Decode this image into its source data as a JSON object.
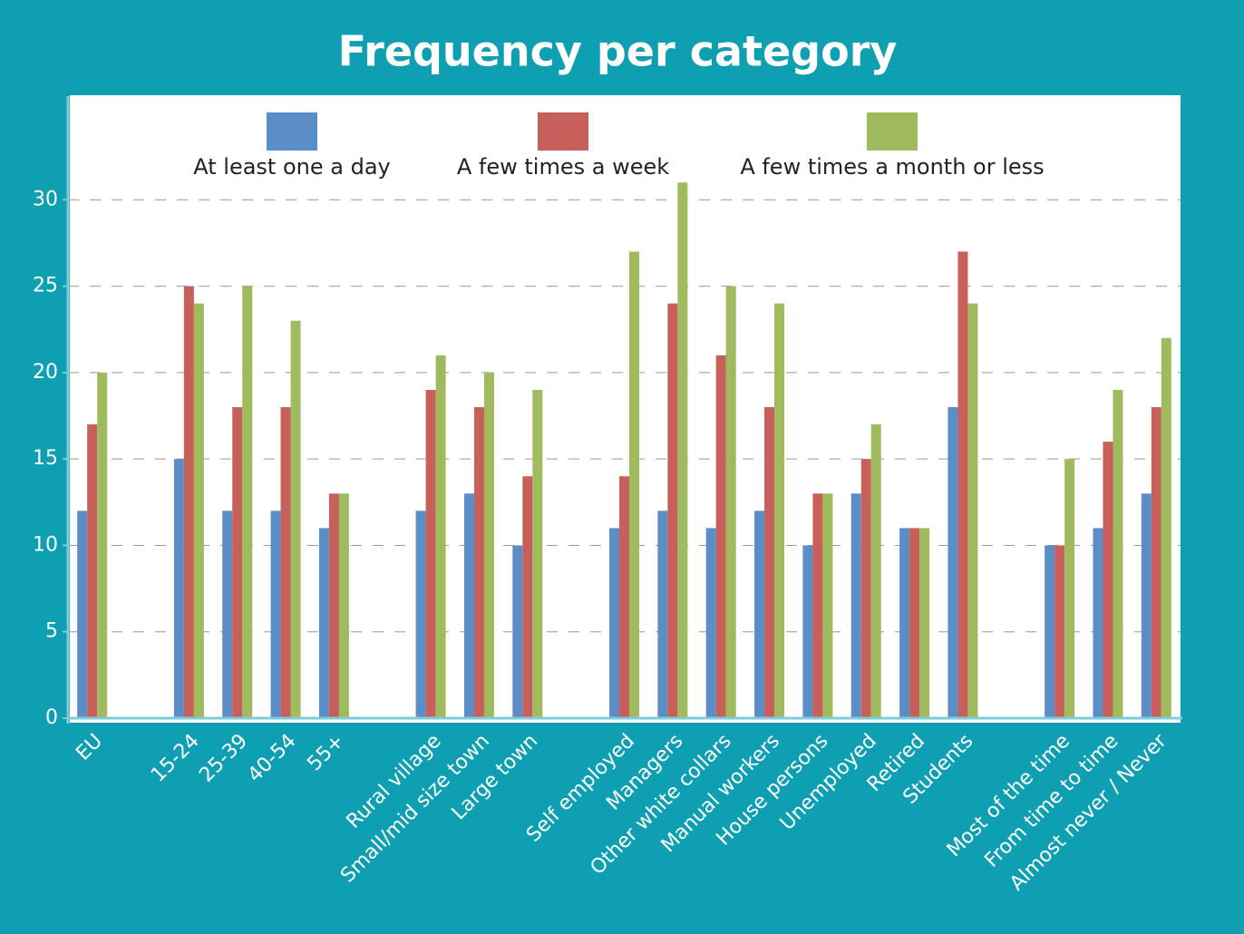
{
  "chart_data": {
    "type": "bar",
    "title": "Frequency per category",
    "categories": [
      "EU",
      null,
      "15-24",
      "25-39",
      "40-54",
      "55+",
      null,
      "Rural village",
      "Small/mid size town",
      "Large town",
      null,
      "Self employed",
      "Managers",
      "Other white collars",
      "Manual workers",
      "House persons",
      "Unemployed",
      "Retired",
      "Students",
      null,
      "Most of the time",
      "From time to time",
      "Almost never / Never"
    ],
    "series": [
      {
        "name": "At least one a day",
        "color": "#5b8ec6",
        "values": [
          12,
          null,
          15,
          12,
          12,
          11,
          null,
          12,
          13,
          10,
          null,
          11,
          12,
          11,
          12,
          10,
          13,
          11,
          18,
          null,
          10,
          11,
          13
        ]
      },
      {
        "name": "A few times a week",
        "color": "#c75f5a",
        "values": [
          17,
          null,
          25,
          18,
          18,
          13,
          null,
          19,
          18,
          14,
          null,
          14,
          24,
          21,
          18,
          13,
          15,
          11,
          27,
          null,
          10,
          16,
          18
        ]
      },
      {
        "name": "A few times a month or less",
        "color": "#9fbb5e",
        "values": [
          20,
          null,
          24,
          25,
          23,
          13,
          null,
          21,
          20,
          19,
          null,
          27,
          31,
          25,
          24,
          13,
          17,
          11,
          24,
          null,
          15,
          19,
          22
        ]
      }
    ],
    "ylim": [
      0,
      36
    ],
    "yticks": [
      0,
      5,
      10,
      15,
      20,
      25,
      30
    ],
    "grid": true,
    "legend": "top"
  }
}
